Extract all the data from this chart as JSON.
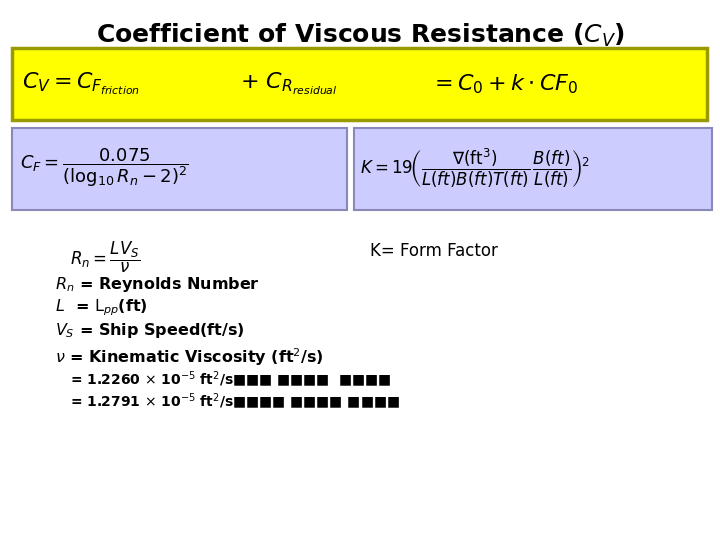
{
  "title": "Coefficient of Viscous Resistance ($C_V$)",
  "title_fontsize": 18,
  "title_fontweight": "bold",
  "bg_color": "#ffffff",
  "yellow_box_color": "#ffff00",
  "yellow_box_border": "#999900",
  "blue_box_color": "#ccccff",
  "blue_box_border": "#8888bb",
  "note_k": "K= Form Factor",
  "fig_width": 7.2,
  "fig_height": 5.4,
  "fig_dpi": 100
}
